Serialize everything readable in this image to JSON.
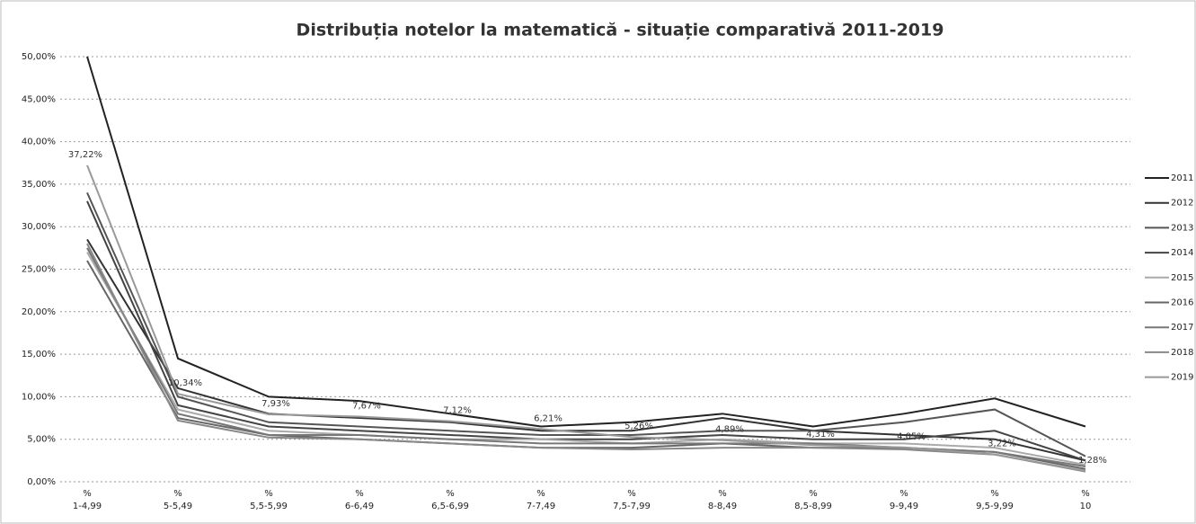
{
  "chart_data": {
    "type": "line",
    "title": "Distribuția notelor la matematică - situație comparativă 2011-2019",
    "categories": [
      [
        "%",
        "1-4,99"
      ],
      [
        "%",
        "5-5,49"
      ],
      [
        "%",
        "5,5-5,99"
      ],
      [
        "%",
        "6-6,49"
      ],
      [
        "%",
        "6,5-6,99"
      ],
      [
        "%",
        "7-7,49"
      ],
      [
        "%",
        "7,5-7,99"
      ],
      [
        "%",
        "8-8,49"
      ],
      [
        "%",
        "8,5-8,99"
      ],
      [
        "%",
        "9-9,49"
      ],
      [
        "%",
        "9,5-9,99"
      ],
      [
        "%",
        "10"
      ]
    ],
    "ylim": [
      0,
      50
    ],
    "yticks": [
      {
        "value": 0,
        "label": "0,00%"
      },
      {
        "value": 5,
        "label": "5,00%"
      },
      {
        "value": 10,
        "label": "10,00%"
      },
      {
        "value": 15,
        "label": "15,00%"
      },
      {
        "value": 20,
        "label": "20,00%"
      },
      {
        "value": 25,
        "label": "25,00%"
      },
      {
        "value": 30,
        "label": "30,00%"
      },
      {
        "value": 35,
        "label": "35,00%"
      },
      {
        "value": 40,
        "label": "40,00%"
      },
      {
        "value": 45,
        "label": "45,00%"
      },
      {
        "value": 50,
        "label": "50,00%"
      }
    ],
    "grid": true,
    "legend": "right",
    "series": [
      {
        "name": "2011",
        "color": "#222222",
        "values": [
          50,
          14.5,
          10,
          9.5,
          8,
          6.5,
          7,
          8,
          6.5,
          8,
          9.8,
          6.5
        ]
      },
      {
        "name": "2012",
        "color": "#333333",
        "values": [
          28.5,
          11,
          8,
          7.5,
          7,
          6,
          6,
          7.5,
          6,
          5.5,
          5,
          2.5
        ]
      },
      {
        "name": "2013",
        "color": "#555555",
        "values": [
          34,
          10,
          7,
          6.5,
          6,
          5.5,
          5.5,
          6,
          6,
          7,
          8.5,
          3
        ]
      },
      {
        "name": "2014",
        "color": "#444444",
        "values": [
          33,
          9,
          6.5,
          6,
          5.5,
          5,
          5,
          5.5,
          5,
          5,
          6,
          2.5
        ]
      },
      {
        "name": "2015",
        "color": "#aaaaaa",
        "values": [
          27,
          8.5,
          6,
          5.5,
          5,
          5,
          4.5,
          5,
          4.5,
          4.5,
          4,
          2
        ]
      },
      {
        "name": "2016",
        "color": "#666666",
        "values": [
          26,
          7.5,
          5.5,
          5,
          4.5,
          4,
          4,
          4.5,
          4,
          4,
          3.5,
          1.5
        ]
      },
      {
        "name": "2017",
        "color": "#777777",
        "values": [
          27.5,
          8,
          5.5,
          5.5,
          5,
          4.5,
          4.5,
          4.5,
          4.5,
          4,
          3.5,
          1.8
        ]
      },
      {
        "name": "2018",
        "color": "#888888",
        "values": [
          28,
          7.2,
          5.2,
          5,
          4.5,
          4,
          3.8,
          4,
          4,
          3.8,
          3.2,
          1.2
        ]
      },
      {
        "name": "2019",
        "color": "#999999",
        "values": [
          37.22,
          10.34,
          7.93,
          7.67,
          7.12,
          6.21,
          5.26,
          4.89,
          4.31,
          4.05,
          3.22,
          1.28
        ],
        "value_labels": [
          "37,22%",
          "10,34%",
          "7,93%",
          "7,67%",
          "7,12%",
          "6,21%",
          "5,26%",
          "4,89%",
          "4,31%",
          "4,05%",
          "3,22%",
          "1,28%"
        ]
      }
    ]
  }
}
